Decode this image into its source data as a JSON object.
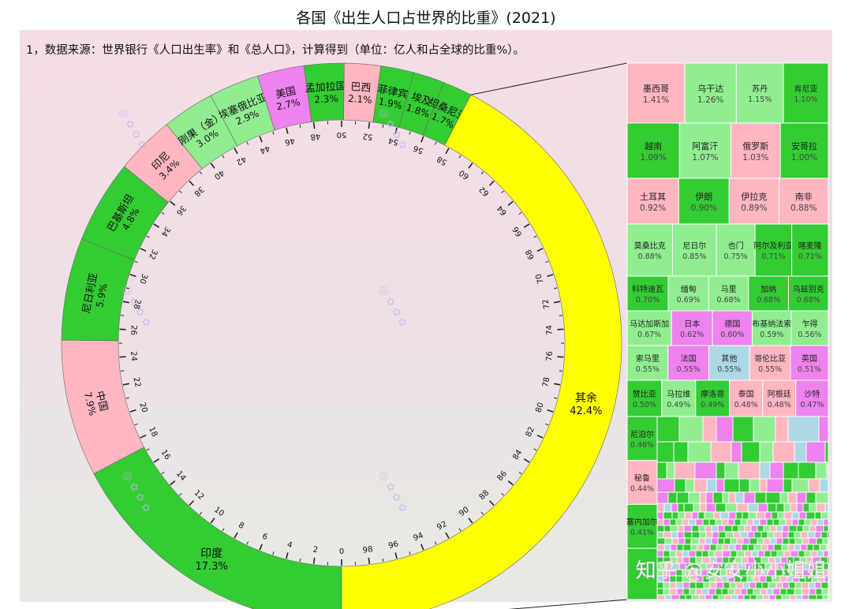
{
  "title": "各国《出生人口占世界的比重》(2021)",
  "subtitle": "1，数据来源：世界银行《人口出生率》和《总人口》，计算得到（单位：亿人和占全球的比重%）。",
  "watermark": "知乎 @安安小小姐姐",
  "colors": {
    "green": "#33cc33",
    "lightgreen": "#90ee90",
    "pink": "#ffb6c1",
    "violet": "#ee82ee",
    "blue": "#add8e6",
    "yellow": "#ffff00"
  },
  "chart_data": [
    {
      "type": "pie",
      "title": "",
      "scale_ticks": [
        0,
        2,
        4,
        6,
        8,
        10,
        12,
        14,
        16,
        18,
        20,
        22,
        24,
        26,
        28,
        30,
        32,
        34,
        36,
        38,
        40,
        42,
        44,
        46,
        48,
        50,
        52,
        54,
        56,
        58,
        60,
        62,
        64,
        66,
        68,
        70,
        72,
        74,
        76,
        78,
        80,
        82,
        84,
        86,
        88,
        90,
        92,
        94,
        96,
        98
      ],
      "slices": [
        {
          "label": "印度",
          "value": 17.3,
          "display": "17.3%",
          "color": "green"
        },
        {
          "label": "中国",
          "value": 7.9,
          "display": "7.9%",
          "color": "pink"
        },
        {
          "label": "尼日利亚",
          "value": 5.9,
          "display": "5.9%",
          "color": "green"
        },
        {
          "label": "巴基斯坦",
          "value": 4.8,
          "display": "4.8%",
          "color": "green"
        },
        {
          "label": "印尼",
          "value": 3.4,
          "display": "3.4%",
          "color": "pink"
        },
        {
          "label": "刚果（金）",
          "value": 3.0,
          "display": "3.0%",
          "color": "lightgreen"
        },
        {
          "label": "埃塞俄比亚",
          "value": 2.9,
          "display": "2.9%",
          "color": "lightgreen"
        },
        {
          "label": "美国",
          "value": 2.7,
          "display": "2.7%",
          "color": "violet"
        },
        {
          "label": "孟加拉国",
          "value": 2.3,
          "display": "2.3%",
          "color": "green"
        },
        {
          "label": "巴西",
          "value": 2.1,
          "display": "2.1%",
          "color": "pink"
        },
        {
          "label": "菲律宾",
          "value": 1.9,
          "display": "1.9%",
          "color": "green"
        },
        {
          "label": "埃及",
          "value": 1.8,
          "display": "1.8%",
          "color": "green"
        },
        {
          "label": "坦桑尼亚",
          "value": 1.7,
          "display": "1.7%",
          "color": "green"
        },
        {
          "label": "其余",
          "value": 42.4,
          "display": "42.4%",
          "color": "yellow"
        }
      ]
    },
    {
      "type": "treemap",
      "title": "",
      "labeled": [
        {
          "label": "墨西哥",
          "value": 1.41,
          "display": "1.41%",
          "color": "pink"
        },
        {
          "label": "乌干达",
          "value": 1.26,
          "display": "1.26%",
          "color": "lightgreen"
        },
        {
          "label": "苏丹",
          "value": 1.15,
          "display": "1.15%",
          "color": "lightgreen"
        },
        {
          "label": "肯尼亚",
          "value": 1.1,
          "display": "1.10%",
          "color": "green"
        },
        {
          "label": "越南",
          "value": 1.09,
          "display": "1.09%",
          "color": "green"
        },
        {
          "label": "阿富汗",
          "value": 1.07,
          "display": "1.07%",
          "color": "lightgreen"
        },
        {
          "label": "俄罗斯",
          "value": 1.03,
          "display": "1.03%",
          "color": "pink"
        },
        {
          "label": "安哥拉",
          "value": 1.0,
          "display": "1.00%",
          "color": "green"
        },
        {
          "label": "土耳其",
          "value": 0.92,
          "display": "0.92%",
          "color": "pink"
        },
        {
          "label": "伊朗",
          "value": 0.9,
          "display": "0.90%",
          "color": "green"
        },
        {
          "label": "伊拉克",
          "value": 0.89,
          "display": "0.89%",
          "color": "pink"
        },
        {
          "label": "南非",
          "value": 0.88,
          "display": "0.88%",
          "color": "pink"
        },
        {
          "label": "莫桑比克",
          "value": 0.88,
          "display": "0.88%",
          "color": "lightgreen"
        },
        {
          "label": "尼日尔",
          "value": 0.85,
          "display": "0.85%",
          "color": "lightgreen"
        },
        {
          "label": "也门",
          "value": 0.75,
          "display": "0.75%",
          "color": "lightgreen"
        },
        {
          "label": "阿尔及利亚",
          "value": 0.71,
          "display": "0.71%",
          "color": "green"
        },
        {
          "label": "喀麦隆",
          "value": 0.71,
          "display": "0.71%",
          "color": "green"
        },
        {
          "label": "科特迪瓦",
          "value": 0.7,
          "display": "0.70%",
          "color": "green"
        },
        {
          "label": "缅甸",
          "value": 0.69,
          "display": "0.69%",
          "color": "lightgreen"
        },
        {
          "label": "马里",
          "value": 0.68,
          "display": "0.68%",
          "color": "lightgreen"
        },
        {
          "label": "加纳",
          "value": 0.68,
          "display": "0.68%",
          "color": "green"
        },
        {
          "label": "乌兹别克",
          "value": 0.68,
          "display": "0.68%",
          "color": "green"
        },
        {
          "label": "马达加斯加",
          "value": 0.67,
          "display": "0.67%",
          "color": "lightgreen"
        },
        {
          "label": "日本",
          "value": 0.62,
          "display": "0.62%",
          "color": "violet"
        },
        {
          "label": "德国",
          "value": 0.6,
          "display": "0.60%",
          "color": "violet"
        },
        {
          "label": "布基纳法索",
          "value": 0.59,
          "display": "0.59%",
          "color": "lightgreen"
        },
        {
          "label": "乍得",
          "value": 0.56,
          "display": "0.56%",
          "color": "lightgreen"
        },
        {
          "label": "索马里",
          "value": 0.55,
          "display": "0.55%",
          "color": "lightgreen"
        },
        {
          "label": "法国",
          "value": 0.55,
          "display": "0.55%",
          "color": "violet"
        },
        {
          "label": "其他",
          "value": 0.55,
          "display": "0.55%",
          "color": "blue"
        },
        {
          "label": "哥伦比亚",
          "value": 0.55,
          "display": "0.55%",
          "color": "pink"
        },
        {
          "label": "英国",
          "value": 0.51,
          "display": "0.51%",
          "color": "violet"
        },
        {
          "label": "赞比亚",
          "value": 0.5,
          "display": "0.50%",
          "color": "green"
        },
        {
          "label": "马拉维",
          "value": 0.49,
          "display": "0.49%",
          "color": "lightgreen"
        },
        {
          "label": "摩洛哥",
          "value": 0.49,
          "display": "0.49%",
          "color": "green"
        },
        {
          "label": "泰国",
          "value": 0.48,
          "display": "0.48%",
          "color": "pink"
        },
        {
          "label": "阿根廷",
          "value": 0.48,
          "display": "0.48%",
          "color": "pink"
        },
        {
          "label": "沙特",
          "value": 0.47,
          "display": "0.47%",
          "color": "violet"
        },
        {
          "label": "尼泊尔",
          "value": 0.46,
          "display": "0.46%",
          "color": "green"
        },
        {
          "label": "秘鲁",
          "value": 0.44,
          "display": "0.44%",
          "color": "pink"
        },
        {
          "label": "塞内加尔",
          "value": 0.41,
          "display": "0.41%",
          "color": "green"
        }
      ]
    }
  ]
}
